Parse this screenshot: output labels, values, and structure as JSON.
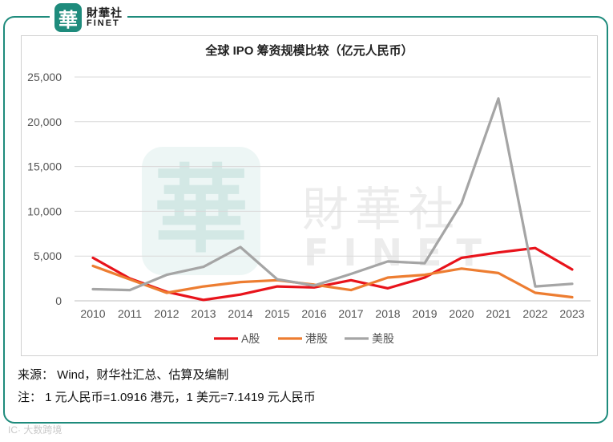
{
  "logo": {
    "mark": "華",
    "cn": "財華社",
    "en": "FINET"
  },
  "watermark_text": {
    "mark": "華",
    "cn": "財華社",
    "en": "FINET"
  },
  "chart_data": {
    "type": "line",
    "title": "全球 IPO 筹资规模比较（亿元人民币）",
    "x": [
      "2010",
      "2011",
      "2012",
      "2013",
      "2014",
      "2015",
      "2016",
      "2017",
      "2018",
      "2019",
      "2020",
      "2021",
      "2022",
      "2023"
    ],
    "y_ticks": [
      "0",
      "5,000",
      "10,000",
      "15,000",
      "20,000",
      "25,000"
    ],
    "ylim": [
      0,
      25000
    ],
    "grid": true,
    "legend_position": "bottom",
    "series": [
      {
        "name": "A股",
        "color": "#e8131b",
        "values": [
          4800,
          2500,
          1000,
          100,
          700,
          1600,
          1500,
          2300,
          1400,
          2600,
          4800,
          5400,
          5900,
          3500
        ]
      },
      {
        "name": "港股",
        "color": "#ed7d31",
        "values": [
          3900,
          2400,
          900,
          1600,
          2100,
          2300,
          1800,
          1200,
          2600,
          2900,
          3600,
          3100,
          900,
          400
        ]
      },
      {
        "name": "美股",
        "color": "#a5a5a5",
        "values": [
          1300,
          1200,
          2900,
          3800,
          6000,
          2400,
          1700,
          3000,
          4400,
          4200,
          10900,
          22600,
          1600,
          1900
        ]
      }
    ]
  },
  "notes": {
    "source": "来源：  Wind，财华社汇总、估算及编制",
    "note": "注：  1 元人民币=1.0916 港元，1 美元=7.1419 元人民币"
  },
  "corner_watermark": "IC· 大数跨境"
}
